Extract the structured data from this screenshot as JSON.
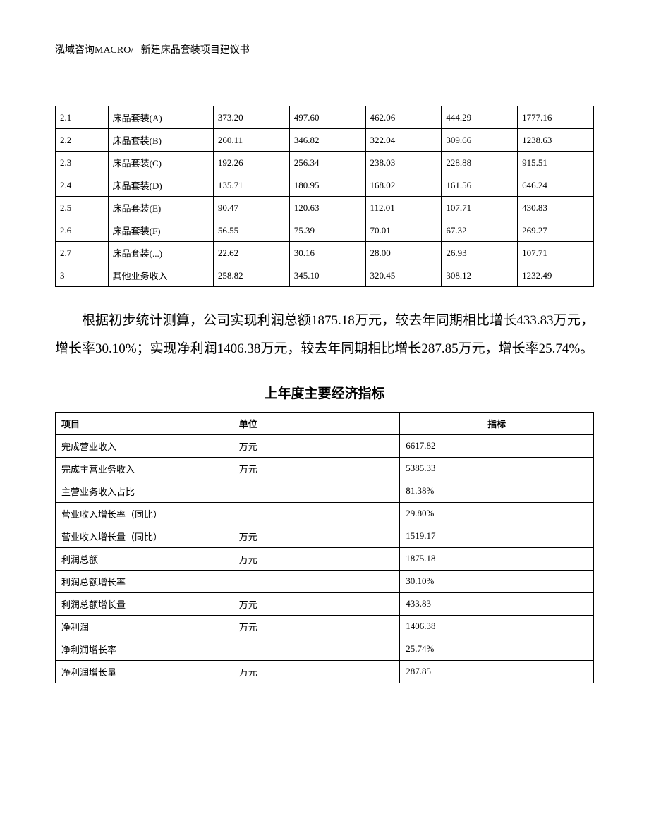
{
  "header": {
    "left": "泓域咨询MACRO/",
    "right": "新建床品套装项目建议书"
  },
  "table1": {
    "rows": [
      {
        "c": [
          "2.1",
          "床品套装(A)",
          "373.20",
          "497.60",
          "462.06",
          "444.29",
          "1777.16"
        ]
      },
      {
        "c": [
          "2.2",
          "床品套装(B)",
          "260.11",
          "346.82",
          "322.04",
          "309.66",
          "1238.63"
        ]
      },
      {
        "c": [
          "2.3",
          "床品套装(C)",
          "192.26",
          "256.34",
          "238.03",
          "228.88",
          "915.51"
        ]
      },
      {
        "c": [
          "2.4",
          "床品套装(D)",
          "135.71",
          "180.95",
          "168.02",
          "161.56",
          "646.24"
        ]
      },
      {
        "c": [
          "2.5",
          "床品套装(E)",
          "90.47",
          "120.63",
          "112.01",
          "107.71",
          "430.83"
        ]
      },
      {
        "c": [
          "2.6",
          "床品套装(F)",
          "56.55",
          "75.39",
          "70.01",
          "67.32",
          "269.27"
        ]
      },
      {
        "c": [
          "2.7",
          "床品套装(...)",
          "22.62",
          "30.16",
          "28.00",
          "26.93",
          "107.71"
        ]
      },
      {
        "c": [
          "3",
          "其他业务收入",
          "258.82",
          "345.10",
          "320.45",
          "308.12",
          "1232.49"
        ]
      }
    ]
  },
  "paragraph": "根据初步统计测算，公司实现利润总额1875.18万元，较去年同期相比增长433.83万元，增长率30.10%；实现净利润1406.38万元，较去年同期相比增长287.85万元，增长率25.74%。",
  "section_title": "上年度主要经济指标",
  "table2": {
    "headers": [
      "项目",
      "单位",
      "指标"
    ],
    "rows": [
      {
        "c": [
          "完成营业收入",
          "万元",
          "6617.82"
        ]
      },
      {
        "c": [
          "完成主营业务收入",
          "万元",
          "5385.33"
        ]
      },
      {
        "c": [
          "主营业务收入占比",
          "",
          "81.38%"
        ]
      },
      {
        "c": [
          "营业收入增长率（同比）",
          "",
          "29.80%"
        ]
      },
      {
        "c": [
          "营业收入增长量（同比）",
          "万元",
          "1519.17"
        ]
      },
      {
        "c": [
          "利润总额",
          "万元",
          "1875.18"
        ]
      },
      {
        "c": [
          "利润总额增长率",
          "",
          "30.10%"
        ]
      },
      {
        "c": [
          "利润总额增长量",
          "万元",
          "433.83"
        ]
      },
      {
        "c": [
          "净利润",
          "万元",
          "1406.38"
        ]
      },
      {
        "c": [
          "净利润增长率",
          "",
          "25.74%"
        ]
      },
      {
        "c": [
          "净利润增长量",
          "万元",
          "287.85"
        ]
      }
    ]
  }
}
